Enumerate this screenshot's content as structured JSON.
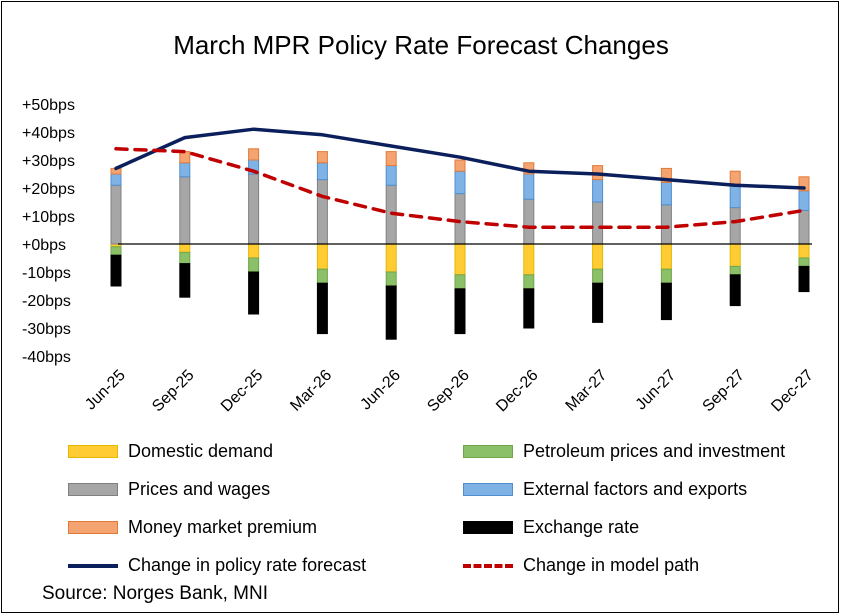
{
  "chart_data": {
    "type": "bar",
    "title": "March MPR Policy Rate Forecast Changes",
    "categories": [
      "Jun-25",
      "Sep-25",
      "Dec-25",
      "Mar-26",
      "Jun-26",
      "Sep-26",
      "Dec-26",
      "Mar-27",
      "Jun-27",
      "Sep-27",
      "Dec-27"
    ],
    "ylim": [
      -40,
      50
    ],
    "yticks": [
      {
        "value": 50,
        "label": "+50bps"
      },
      {
        "value": 40,
        "label": "+40bps"
      },
      {
        "value": 30,
        "label": "+30bps"
      },
      {
        "value": 20,
        "label": "+20bps"
      },
      {
        "value": 10,
        "label": "+10bps"
      },
      {
        "value": 0,
        "label": "+0bps"
      },
      {
        "value": -10,
        "label": "-10bps"
      },
      {
        "value": -20,
        "label": "-20bps"
      },
      {
        "value": -30,
        "label": "-30bps"
      },
      {
        "value": -40,
        "label": "-40bps"
      }
    ],
    "bar_series": [
      {
        "name": "Domestic demand",
        "color": "#FFCC33",
        "border": "#E6B800",
        "values": [
          -1,
          -3,
          -5,
          -9,
          -10,
          -11,
          -11,
          -9,
          -9,
          -8,
          -5
        ]
      },
      {
        "name": "Petroleum prices and investment",
        "color": "#8CC068",
        "border": "#6FA64A",
        "values": [
          -3,
          -4,
          -5,
          -5,
          -5,
          -5,
          -5,
          -5,
          -5,
          -3,
          -3
        ]
      },
      {
        "name": "Prices and wages",
        "color": "#A6A6A6",
        "border": "#808080",
        "values": [
          21,
          24,
          25,
          23,
          21,
          18,
          16,
          15,
          14,
          13,
          12
        ]
      },
      {
        "name": "External factors and exports",
        "color": "#7FB2E5",
        "border": "#4F8FD0",
        "values": [
          4,
          5,
          5,
          6,
          7,
          8,
          9,
          8,
          8,
          8,
          7
        ]
      },
      {
        "name": "Money market premium",
        "color": "#F4A470",
        "border": "#E07A3A",
        "values": [
          2,
          4,
          4,
          4,
          5,
          4,
          4,
          5,
          5,
          5,
          5
        ]
      },
      {
        "name": "Exchange rate",
        "color": "#000000",
        "border": "#000000",
        "values": [
          -11,
          -12,
          -15,
          -18,
          -19,
          -16,
          -14,
          -14,
          -13,
          -11,
          -9
        ]
      }
    ],
    "line_series": [
      {
        "name": "Change in policy rate forecast",
        "color": "#0B1F5C",
        "style": "solid",
        "values": [
          27,
          38,
          41,
          39,
          35,
          31,
          26,
          25,
          23,
          21,
          20
        ]
      },
      {
        "name": "Change in model path",
        "color": "#C00000",
        "style": "dashed",
        "values": [
          34,
          33,
          26,
          17,
          11,
          8,
          6,
          6,
          6,
          8,
          12
        ]
      }
    ],
    "legend": [
      {
        "name": "Domestic demand",
        "kind": "bar",
        "color": "#FFCC33",
        "border": "#E6B800"
      },
      {
        "name": "Petroleum prices and investment",
        "kind": "bar",
        "color": "#8CC068",
        "border": "#6FA64A"
      },
      {
        "name": "Prices and wages",
        "kind": "bar",
        "color": "#A6A6A6",
        "border": "#808080"
      },
      {
        "name": "External factors and exports",
        "kind": "bar",
        "color": "#7FB2E5",
        "border": "#4F8FD0"
      },
      {
        "name": "Money market premium",
        "kind": "bar",
        "color": "#F4A470",
        "border": "#E07A3A"
      },
      {
        "name": "Exchange rate",
        "kind": "bar",
        "color": "#000000",
        "border": "#000000"
      },
      {
        "name": "Change in policy rate forecast",
        "kind": "line",
        "color": "#0B1F5C",
        "style": "solid"
      },
      {
        "name": "Change in model path",
        "kind": "line",
        "color": "#C00000",
        "style": "dashed"
      }
    ],
    "grid": false,
    "legend_position": "bottom"
  },
  "source": "Source: Norges Bank, MNI"
}
